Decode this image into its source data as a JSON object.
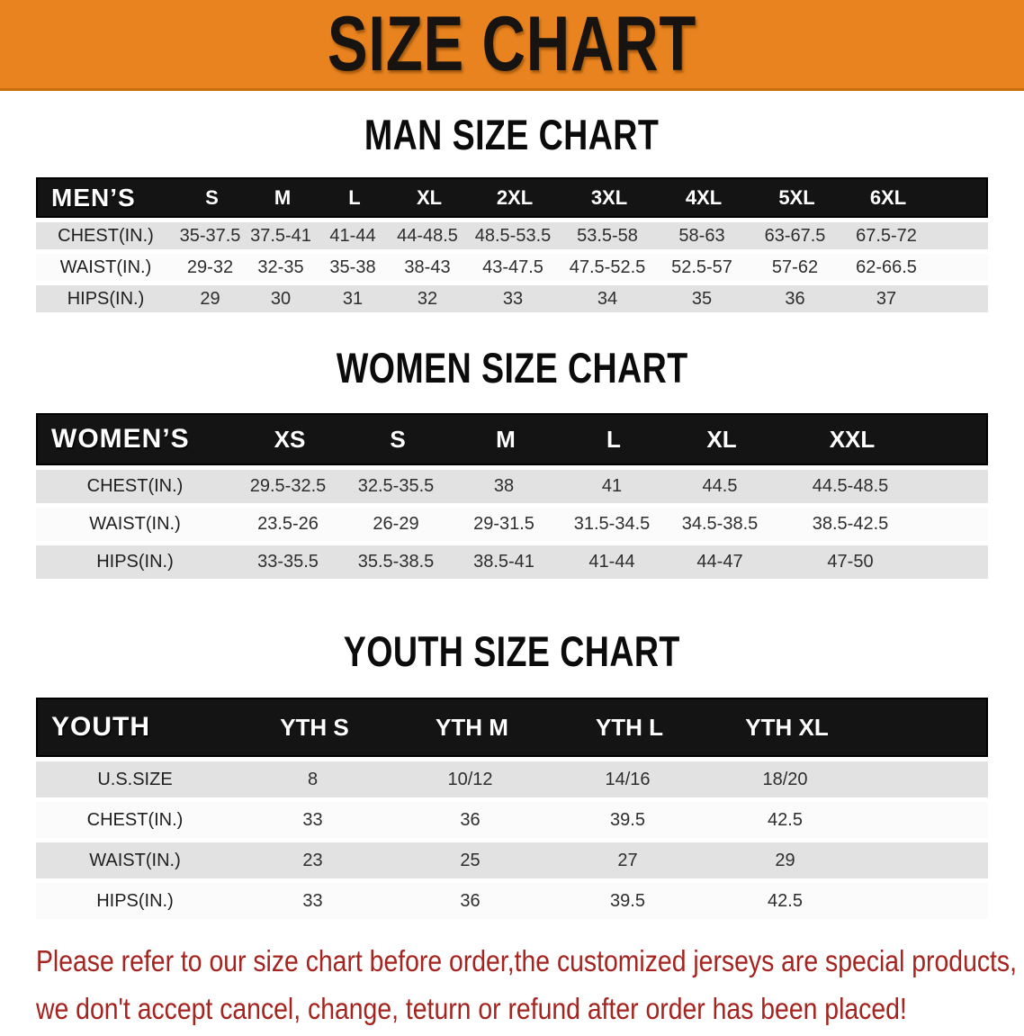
{
  "banner": {
    "title": "SIZE CHART",
    "bg_color": "#e8831f"
  },
  "colors": {
    "header_bar": "#141414",
    "row_gray": "#e2e2e2",
    "row_white": "#fbfbfb",
    "disclaimer_red": "#a5241f"
  },
  "tables": [
    {
      "id": "men",
      "title": "MAN SIZE CHART",
      "header_label": "MEN’S",
      "columns": [
        "S",
        "M",
        "L",
        "XL",
        "2XL",
        "3XL",
        "4XL",
        "5XL",
        "6XL"
      ],
      "rows": [
        {
          "label": "CHEST(IN.)",
          "values": [
            "35-37.5",
            "37.5-41",
            "41-44",
            "44-48.5",
            "48.5-53.5",
            "53.5-58",
            "58-63",
            "63-67.5",
            "67.5-72"
          ]
        },
        {
          "label": "WAIST(IN.)",
          "values": [
            "29-32",
            "32-35",
            "35-38",
            "38-43",
            "43-47.5",
            "47.5-52.5",
            "52.5-57",
            "57-62",
            "62-66.5"
          ]
        },
        {
          "label": "HIPS(IN.)",
          "values": [
            "29",
            "30",
            "31",
            "32",
            "33",
            "34",
            "35",
            "36",
            "37"
          ]
        }
      ]
    },
    {
      "id": "women",
      "title": "WOMEN SIZE CHART",
      "header_label": "WOMEN’S",
      "columns": [
        "XS",
        "S",
        "M",
        "L",
        "XL",
        "XXL"
      ],
      "rows": [
        {
          "label": "CHEST(IN.)",
          "values": [
            "29.5-32.5",
            "32.5-35.5",
            "38",
            "41",
            "44.5",
            "44.5-48.5"
          ]
        },
        {
          "label": "WAIST(IN.)",
          "values": [
            "23.5-26",
            "26-29",
            "29-31.5",
            "31.5-34.5",
            "34.5-38.5",
            "38.5-42.5"
          ]
        },
        {
          "label": "HIPS(IN.)",
          "values": [
            "33-35.5",
            "35.5-38.5",
            "38.5-41",
            "41-44",
            "44-47",
            "47-50"
          ]
        }
      ]
    },
    {
      "id": "youth",
      "title": "YOUTH SIZE CHART",
      "header_label": "YOUTH",
      "columns": [
        "YTH S",
        "YTH M",
        "YTH L",
        "YTH XL"
      ],
      "rows": [
        {
          "label": "U.S.SIZE",
          "values": [
            "8",
            "10/12",
            "14/16",
            "18/20"
          ]
        },
        {
          "label": "CHEST(IN.)",
          "values": [
            "33",
            "36",
            "39.5",
            "42.5"
          ]
        },
        {
          "label": "WAIST(IN.)",
          "values": [
            "23",
            "25",
            "27",
            "29"
          ]
        },
        {
          "label": "HIPS(IN.)",
          "values": [
            "33",
            "36",
            "39.5",
            "42.5"
          ]
        }
      ]
    }
  ],
  "disclaimer": {
    "line1": "Please refer to our size chart before order,the customized jerseys are special products,",
    "line2": "we don't accept cancel, change, teturn or refund after order has been placed!"
  }
}
